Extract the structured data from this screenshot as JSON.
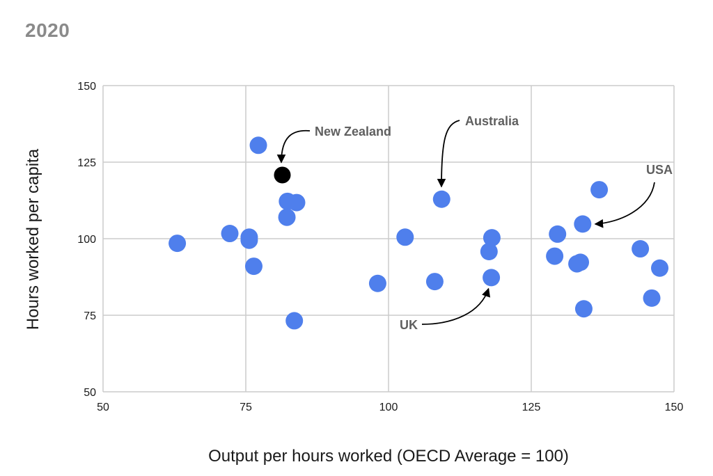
{
  "page": {
    "title": "2020"
  },
  "chart_data": {
    "type": "scatter",
    "title": "2020",
    "xlabel": "Output per hours worked (OECD Average = 100)",
    "ylabel": "Hours worked per capita",
    "xlim": [
      50,
      150
    ],
    "ylim": [
      50,
      150
    ],
    "xticks": [
      "50",
      "75",
      "100",
      "125",
      "150"
    ],
    "yticks": [
      "50",
      "75",
      "100",
      "125",
      "150"
    ],
    "grid": true,
    "colors": {
      "point": "#4f7fec",
      "highlight": "#000000",
      "grid": "#cccccc",
      "annotation": "#5f5f5f"
    },
    "points": [
      {
        "x": 63,
        "y": 98.5
      },
      {
        "x": 72.2,
        "y": 101.7
      },
      {
        "x": 75.6,
        "y": 100.5
      },
      {
        "x": 75.6,
        "y": 99.5
      },
      {
        "x": 76.4,
        "y": 91
      },
      {
        "x": 77.2,
        "y": 130.5
      },
      {
        "x": 81.4,
        "y": 120.8,
        "highlight": true
      },
      {
        "x": 82.3,
        "y": 112.2
      },
      {
        "x": 83.9,
        "y": 111.8
      },
      {
        "x": 82.2,
        "y": 107
      },
      {
        "x": 83.5,
        "y": 73.2
      },
      {
        "x": 98.1,
        "y": 85.4
      },
      {
        "x": 102.9,
        "y": 100.5
      },
      {
        "x": 108.1,
        "y": 86
      },
      {
        "x": 109.3,
        "y": 112.9
      },
      {
        "x": 117.6,
        "y": 95.8
      },
      {
        "x": 118.1,
        "y": 100.3
      },
      {
        "x": 118,
        "y": 87.3
      },
      {
        "x": 129.1,
        "y": 94.3
      },
      {
        "x": 129.6,
        "y": 101.5
      },
      {
        "x": 133,
        "y": 91.8
      },
      {
        "x": 133.6,
        "y": 92.3
      },
      {
        "x": 134,
        "y": 104.8
      },
      {
        "x": 134.2,
        "y": 77.1
      },
      {
        "x": 136.9,
        "y": 116
      },
      {
        "x": 144.1,
        "y": 96.7
      },
      {
        "x": 146.1,
        "y": 80.6
      },
      {
        "x": 147.5,
        "y": 90.4
      }
    ],
    "annotations": [
      {
        "label": "New Zealand",
        "x": 81.4,
        "y": 120.8
      },
      {
        "label": "Australia",
        "x": 109.3,
        "y": 112.9
      },
      {
        "label": "USA",
        "x": 134,
        "y": 104.8
      },
      {
        "label": "UK",
        "x": 118,
        "y": 87.3
      }
    ]
  }
}
